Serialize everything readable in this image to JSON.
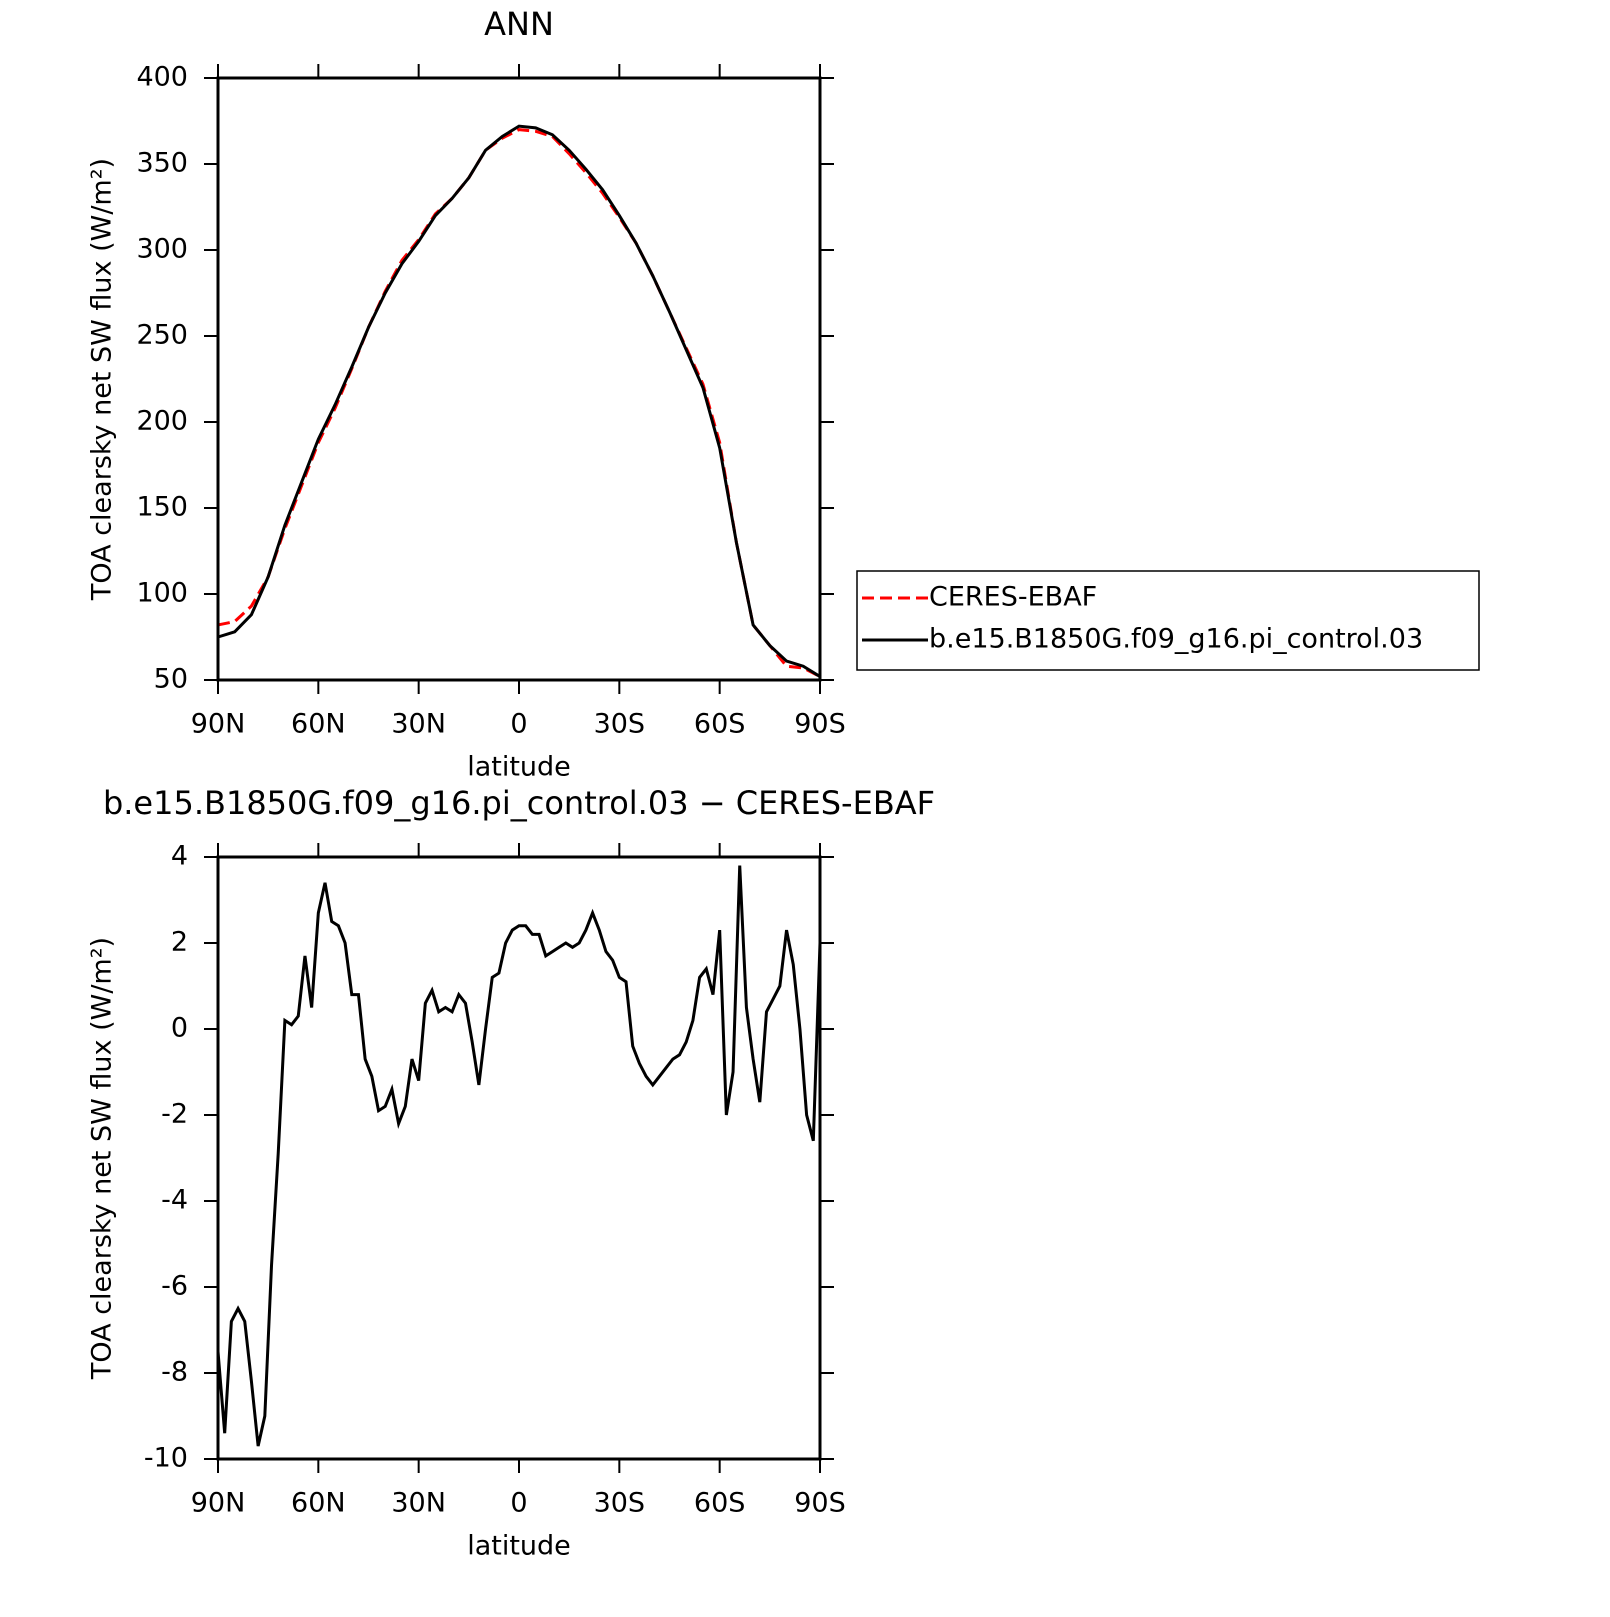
{
  "chart_data": [
    {
      "type": "line",
      "title": "ANN",
      "xlabel": "latitude",
      "ylabel": "TOA clearsky net SW flux (W/m²)",
      "x": [
        90,
        85,
        80,
        75,
        70,
        65,
        60,
        55,
        50,
        45,
        40,
        35,
        30,
        25,
        20,
        15,
        10,
        5,
        0,
        -5,
        -10,
        -15,
        -20,
        -25,
        -30,
        -35,
        -40,
        -45,
        -50,
        -55,
        -60,
        -65,
        -70,
        -75,
        -80,
        -85,
        -90
      ],
      "series": [
        {
          "name": "CERES-EBAF",
          "color": "#ff0000",
          "style": "dashed",
          "values": [
            82,
            84,
            93,
            110,
            138,
            163,
            188,
            208,
            231,
            255,
            276,
            294,
            306,
            321,
            330,
            342,
            358,
            365,
            370,
            369,
            366,
            356,
            345,
            333,
            319,
            304,
            285,
            264,
            243,
            222,
            188,
            130,
            82,
            70,
            58,
            57,
            52
          ]
        },
        {
          "name": "b.e15.B1850G.f09_g16.pi_control.03",
          "color": "#000000",
          "style": "solid",
          "values": [
            75,
            78,
            88,
            110,
            140,
            165,
            190,
            210,
            232,
            255,
            275,
            292,
            305,
            320,
            330,
            342,
            358,
            366,
            372,
            371,
            367,
            358,
            347,
            335,
            320,
            304,
            285,
            264,
            242,
            220,
            185,
            130,
            82,
            70,
            61,
            58,
            52
          ]
        }
      ],
      "xlim": [
        90,
        -90
      ],
      "xticks": [
        {
          "value": 90,
          "label": "90N"
        },
        {
          "value": 60,
          "label": "60N"
        },
        {
          "value": 30,
          "label": "30N"
        },
        0,
        {
          "value": -30,
          "label": "30S"
        },
        {
          "value": -60,
          "label": "60S"
        },
        {
          "value": -90,
          "label": "90S"
        }
      ],
      "ylim": [
        50,
        400
      ],
      "yticks": [
        50,
        100,
        150,
        200,
        250,
        300,
        350,
        400
      ],
      "legend": "right"
    },
    {
      "type": "line",
      "title": "b.e15.B1850G.f09_g16.pi_control.03 − CERES-EBAF",
      "xlabel": "latitude",
      "ylabel": "TOA clearsky net SW flux (W/m²)",
      "x": [
        90,
        88,
        86,
        84,
        82,
        80,
        78,
        76,
        74,
        72,
        70,
        68,
        66,
        64,
        62,
        60,
        58,
        56,
        54,
        52,
        50,
        48,
        46,
        44,
        42,
        40,
        38,
        36,
        34,
        32,
        30,
        28,
        26,
        24,
        22,
        20,
        18,
        16,
        14,
        12,
        10,
        8,
        6,
        4,
        2,
        0,
        -2,
        -4,
        -6,
        -8,
        -10,
        -12,
        -14,
        -16,
        -18,
        -20,
        -22,
        -24,
        -26,
        -28,
        -30,
        -32,
        -34,
        -36,
        -38,
        -40,
        -42,
        -44,
        -46,
        -48,
        -50,
        -52,
        -54,
        -56,
        -58,
        -60,
        -62,
        -64,
        -66,
        -68,
        -70,
        -72,
        -74,
        -76,
        -78,
        -80,
        -82,
        -84,
        -86,
        -88,
        -90
      ],
      "series": [
        {
          "name": "b.e15.B1850G.f09_g16.pi_control.03 − CERES-EBAF",
          "color": "#000000",
          "style": "solid",
          "values": [
            -7.5,
            -9.4,
            -6.8,
            -6.5,
            -6.8,
            -8.2,
            -9.7,
            -9.0,
            -5.5,
            -2.9,
            0.2,
            0.1,
            0.3,
            1.7,
            0.5,
            2.7,
            3.4,
            2.5,
            2.4,
            2.0,
            0.8,
            0.8,
            -0.7,
            -1.1,
            -1.9,
            -1.8,
            -1.4,
            -2.2,
            -1.8,
            -0.7,
            -1.2,
            0.6,
            0.9,
            0.4,
            0.5,
            0.4,
            0.8,
            0.6,
            -0.3,
            -1.3,
            0.0,
            1.2,
            1.3,
            2.0,
            2.3,
            2.4,
            2.4,
            2.2,
            2.2,
            1.7,
            1.8,
            1.9,
            2.0,
            1.9,
            2.0,
            2.3,
            2.7,
            2.3,
            1.8,
            1.6,
            1.2,
            1.1,
            -0.4,
            -0.8,
            -1.1,
            -1.3,
            -1.1,
            -0.9,
            -0.7,
            -0.6,
            -0.3,
            0.2,
            1.2,
            1.4,
            0.8,
            2.3,
            -2.0,
            -1.0,
            3.8,
            0.5,
            -0.7,
            -1.7,
            0.4,
            0.7,
            1.0,
            2.3,
            1.5,
            0.0,
            -2.0,
            -2.6,
            2.0
          ]
        }
      ],
      "xlim": [
        90,
        -90
      ],
      "xticks": [
        {
          "value": 90,
          "label": "90N"
        },
        {
          "value": 60,
          "label": "60N"
        },
        {
          "value": 30,
          "label": "30N"
        },
        0,
        {
          "value": -30,
          "label": "30S"
        },
        {
          "value": -60,
          "label": "60S"
        },
        {
          "value": -90,
          "label": "90S"
        }
      ],
      "ylim": [
        -10,
        4
      ],
      "yticks": [
        -10,
        -8,
        -6,
        -4,
        -2,
        0,
        2,
        4
      ]
    }
  ]
}
